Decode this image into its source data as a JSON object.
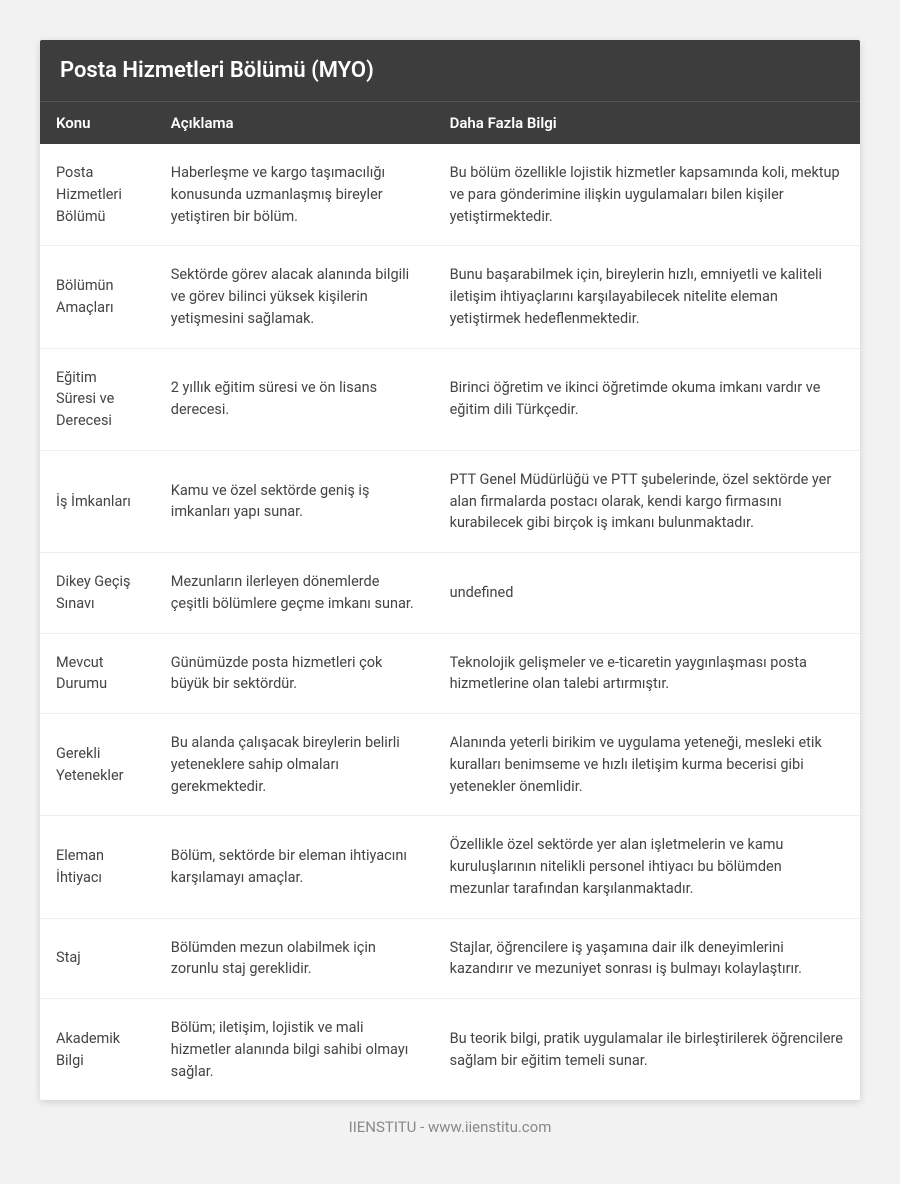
{
  "title": "Posta Hizmetleri Bölümü (MYO)",
  "columns": [
    "Konu",
    "Açıklama",
    "Daha Fazla Bilgi"
  ],
  "rows": [
    {
      "topic": "Posta Hizmetleri Bölümü",
      "desc": "Haberleşme ve kargo taşımacılığı konusunda uzmanlaşmış bireyler yetiştiren bir bölüm.",
      "more": "Bu bölüm özellikle lojistik hizmetler kapsamında koli, mektup ve para gönderimine ilişkin uygulamaları bilen kişiler yetiştirmektedir."
    },
    {
      "topic": "Bölümün Amaçları",
      "desc": "Sektörde görev alacak alanında bilgili ve görev bilinci yüksek kişilerin yetişmesini sağlamak.",
      "more": "Bunu başarabilmek için, bireylerin hızlı, emniyetli ve kaliteli iletişim ihtiyaçlarını karşılayabilecek nitelite eleman yetiştirmek hedeflenmektedir."
    },
    {
      "topic": "Eğitim Süresi ve Derecesi",
      "desc": "2 yıllık eğitim süresi ve ön lisans derecesi.",
      "more": "Birinci öğretim ve ikinci öğretimde okuma imkanı vardır ve eğitim dili Türkçedir."
    },
    {
      "topic": "İş İmkanları",
      "desc": "Kamu ve özel sektörde geniş iş imkanları yapı sunar.",
      "more": "PTT Genel Müdürlüğü ve PTT şubelerinde, özel sektörde yer alan firmalarda postacı olarak, kendi kargo firmasını kurabilecek gibi birçok iş imkanı bulunmaktadır."
    },
    {
      "topic": "Dikey Geçiş Sınavı",
      "desc": "Mezunların ilerleyen dönemlerde çeşitli bölümlere geçme imkanı sunar.",
      "more": "undefined"
    },
    {
      "topic": "Mevcut Durumu",
      "desc": "Günümüzde posta hizmetleri çok büyük bir sektördür.",
      "more": "Teknolojik gelişmeler ve e-ticaretin yaygınlaşması posta hizmetlerine olan talebi artırmıştır."
    },
    {
      "topic": "Gerekli Yetenekler",
      "desc": "Bu alanda çalışacak bireylerin belirli yeteneklere sahip olmaları gerekmektedir.",
      "more": "Alanında yeterli birikim ve uygulama yeteneği, mesleki etik kuralları benimseme ve hızlı iletişim kurma becerisi gibi yetenekler önemlidir."
    },
    {
      "topic": "Eleman İhtiyacı",
      "desc": "Bölüm, sektörde bir eleman ihtiyacını karşılamayı amaçlar.",
      "more": "Özellikle özel sektörde yer alan işletmelerin ve kamu kuruluşlarının nitelikli personel ihtiyacı bu bölümden mezunlar tarafından karşılanmaktadır."
    },
    {
      "topic": "Staj",
      "desc": "Bölümden mezun olabilmek için zorunlu staj gereklidir.",
      "more": "Stajlar, öğrencilere iş yaşamına dair ilk deneyimlerini kazandırır ve mezuniyet sonrası iş bulmayı kolaylaştırır."
    },
    {
      "topic": "Akademik Bilgi",
      "desc": "Bölüm; iletişim, lojistik ve mali hizmetler alanında bilgi sahibi olmayı sağlar.",
      "more": "Bu teorik bilgi, pratik uygulamalar ile birleştirilerek öğrencilere sağlam bir eğitim temeli sunar."
    }
  ],
  "footer": "IIENSTITU - www.iienstitu.com",
  "style": {
    "page_bg": "#f2f2f2",
    "card_bg": "#ffffff",
    "header_bg": "#3d3d3d",
    "header_text": "#ffffff",
    "body_text": "#444444",
    "border_color": "#eeeeee",
    "footer_text": "#888888",
    "title_fontsize": 22,
    "header_fontsize": 15,
    "cell_fontsize": 14.5
  }
}
